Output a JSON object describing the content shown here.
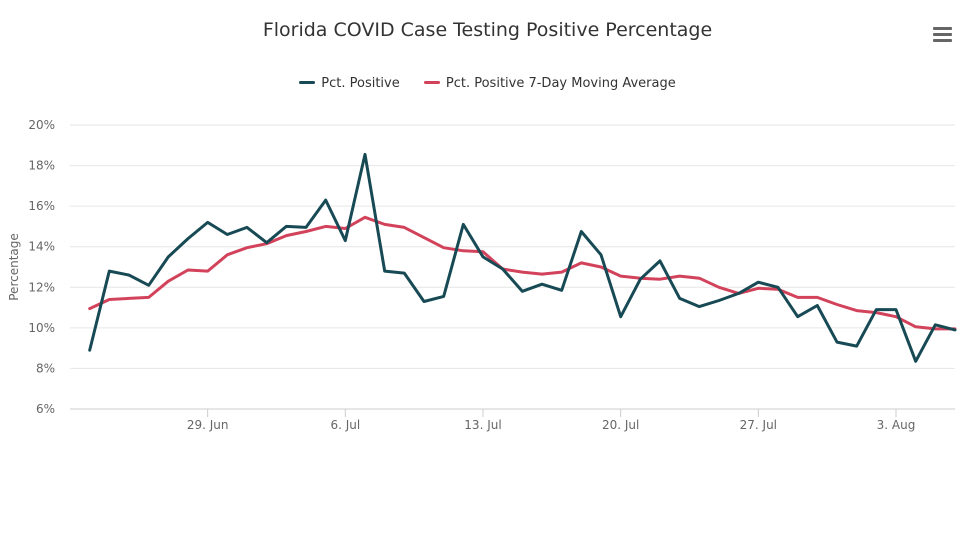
{
  "chart_data": {
    "type": "line",
    "title": "Florida COVID Case Testing Positive Percentage",
    "ylabel": "Percentage",
    "xlabel": "",
    "ylim": [
      6,
      20
    ],
    "y_ticks": [
      6,
      8,
      10,
      12,
      14,
      16,
      18,
      20
    ],
    "y_tick_labels": [
      "6%",
      "8%",
      "10%",
      "12%",
      "14%",
      "16%",
      "18%",
      "20%"
    ],
    "x_range": [
      "2020-06-22",
      "2020-08-06"
    ],
    "x_ticks": [
      "29. Jun",
      "6. Jul",
      "13. Jul",
      "20. Jul",
      "27. Jul",
      "3. Aug"
    ],
    "x_tick_dates": [
      "2020-06-29",
      "2020-07-06",
      "2020-07-13",
      "2020-07-20",
      "2020-07-27",
      "2020-08-03"
    ],
    "grid": true,
    "legend_position": "top-center",
    "x": [
      "2020-06-23",
      "2020-06-24",
      "2020-06-25",
      "2020-06-26",
      "2020-06-27",
      "2020-06-28",
      "2020-06-29",
      "2020-06-30",
      "2020-07-01",
      "2020-07-02",
      "2020-07-03",
      "2020-07-04",
      "2020-07-05",
      "2020-07-06",
      "2020-07-07",
      "2020-07-08",
      "2020-07-09",
      "2020-07-10",
      "2020-07-11",
      "2020-07-12",
      "2020-07-13",
      "2020-07-14",
      "2020-07-15",
      "2020-07-16",
      "2020-07-17",
      "2020-07-18",
      "2020-07-19",
      "2020-07-20",
      "2020-07-21",
      "2020-07-22",
      "2020-07-23",
      "2020-07-24",
      "2020-07-25",
      "2020-07-26",
      "2020-07-27",
      "2020-07-28",
      "2020-07-29",
      "2020-07-30",
      "2020-07-31",
      "2020-08-01",
      "2020-08-02",
      "2020-08-03",
      "2020-08-04",
      "2020-08-05",
      "2020-08-06"
    ],
    "series": [
      {
        "name": "Pct. Positive",
        "color": "#174a54",
        "values": [
          8.9,
          12.8,
          12.6,
          12.1,
          13.5,
          14.4,
          15.2,
          14.6,
          14.95,
          14.2,
          15.0,
          14.95,
          16.3,
          14.3,
          18.55,
          12.8,
          12.7,
          11.3,
          11.55,
          15.1,
          13.5,
          12.9,
          11.8,
          12.15,
          11.85,
          14.75,
          13.6,
          10.55,
          12.4,
          13.3,
          11.45,
          11.05,
          11.35,
          11.7,
          12.25,
          12.0,
          10.55,
          11.1,
          9.3,
          9.1,
          10.9,
          10.9,
          8.35,
          10.15,
          9.9
        ]
      },
      {
        "name": "Pct. Positive 7-Day Moving Average",
        "color": "#d2435b",
        "values": [
          10.95,
          11.4,
          11.45,
          11.5,
          12.3,
          12.85,
          12.8,
          13.6,
          13.95,
          14.15,
          14.55,
          14.75,
          15.0,
          14.9,
          15.45,
          15.1,
          14.95,
          14.45,
          13.95,
          13.8,
          13.75,
          12.9,
          12.75,
          12.65,
          12.75,
          13.2,
          13.0,
          12.55,
          12.45,
          12.4,
          12.55,
          12.45,
          12.0,
          11.7,
          11.95,
          11.9,
          11.5,
          11.5,
          11.15,
          10.85,
          10.75,
          10.55,
          10.05,
          9.95,
          9.95
        ]
      }
    ]
  },
  "ui": {
    "menu_icon": "hamburger-menu-icon"
  }
}
